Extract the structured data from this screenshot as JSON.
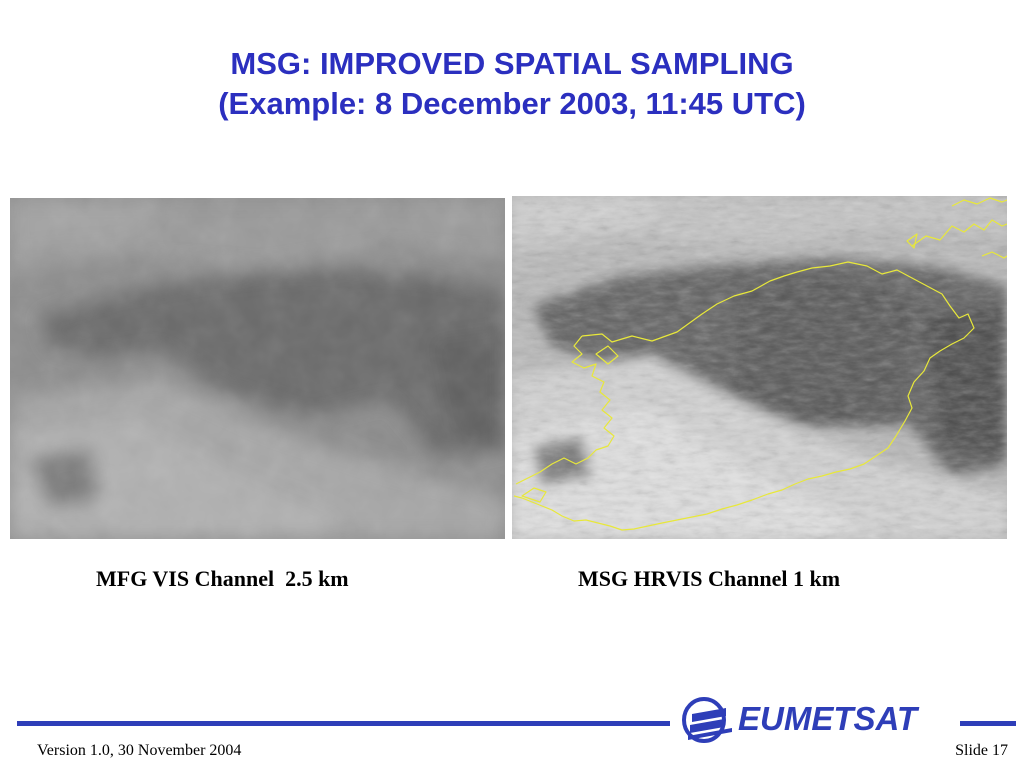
{
  "title": {
    "line1": "MSG: IMPROVED SPATIAL SAMPLING",
    "line2": "(Example: 8 December 2003, 11:45 UTC)"
  },
  "images": {
    "left_caption": "MFG VIS Channel  2.5 km",
    "right_caption": "MSG HRVIS Channel 1 km"
  },
  "footer": {
    "version": "Version 1.0, 30 November 2004",
    "slide": "Slide 17",
    "logo_text": "EUMETSAT"
  },
  "colors": {
    "title": "#2b2fbf",
    "brand": "#2e3eb8",
    "coastline": "#e8e83a"
  }
}
